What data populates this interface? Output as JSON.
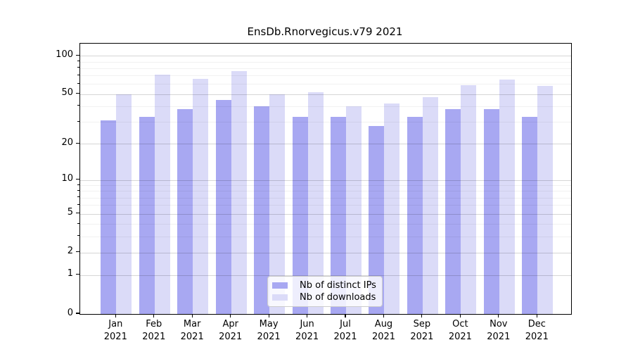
{
  "chart_data": {
    "type": "bar",
    "title": "EnsDb.Rnorvegicus.v79 2021",
    "categories": [
      "Jan",
      "Feb",
      "Mar",
      "Apr",
      "May",
      "Jun",
      "Jul",
      "Aug",
      "Sep",
      "Oct",
      "Nov",
      "Dec"
    ],
    "x_year_label": "2021",
    "series": [
      {
        "name": "Nb of distinct IPs",
        "color": "#a8a8f2",
        "values": [
          31,
          33,
          38,
          45,
          40,
          33,
          33,
          28,
          33,
          38,
          38,
          33
        ]
      },
      {
        "name": "Nb of downloads",
        "color": "#dbdbf8",
        "values": [
          50,
          71,
          66,
          76,
          50,
          52,
          40,
          42,
          47,
          59,
          65,
          58
        ]
      }
    ],
    "y_axis": {
      "scale": "log1p",
      "ticks": [
        0,
        1,
        2,
        5,
        10,
        20,
        50,
        100
      ],
      "minor_ticks": [
        3,
        4,
        6,
        7,
        8,
        9,
        30,
        40,
        60,
        70,
        80,
        90
      ],
      "ylim": [
        0,
        110
      ]
    },
    "legend": {
      "position": "bottom-center"
    },
    "grid": true,
    "colors": {
      "axis": "#000000",
      "grid_major": "#d6d6d6",
      "grid_minor": "#efefef",
      "legend_border": "#cccccc"
    }
  }
}
